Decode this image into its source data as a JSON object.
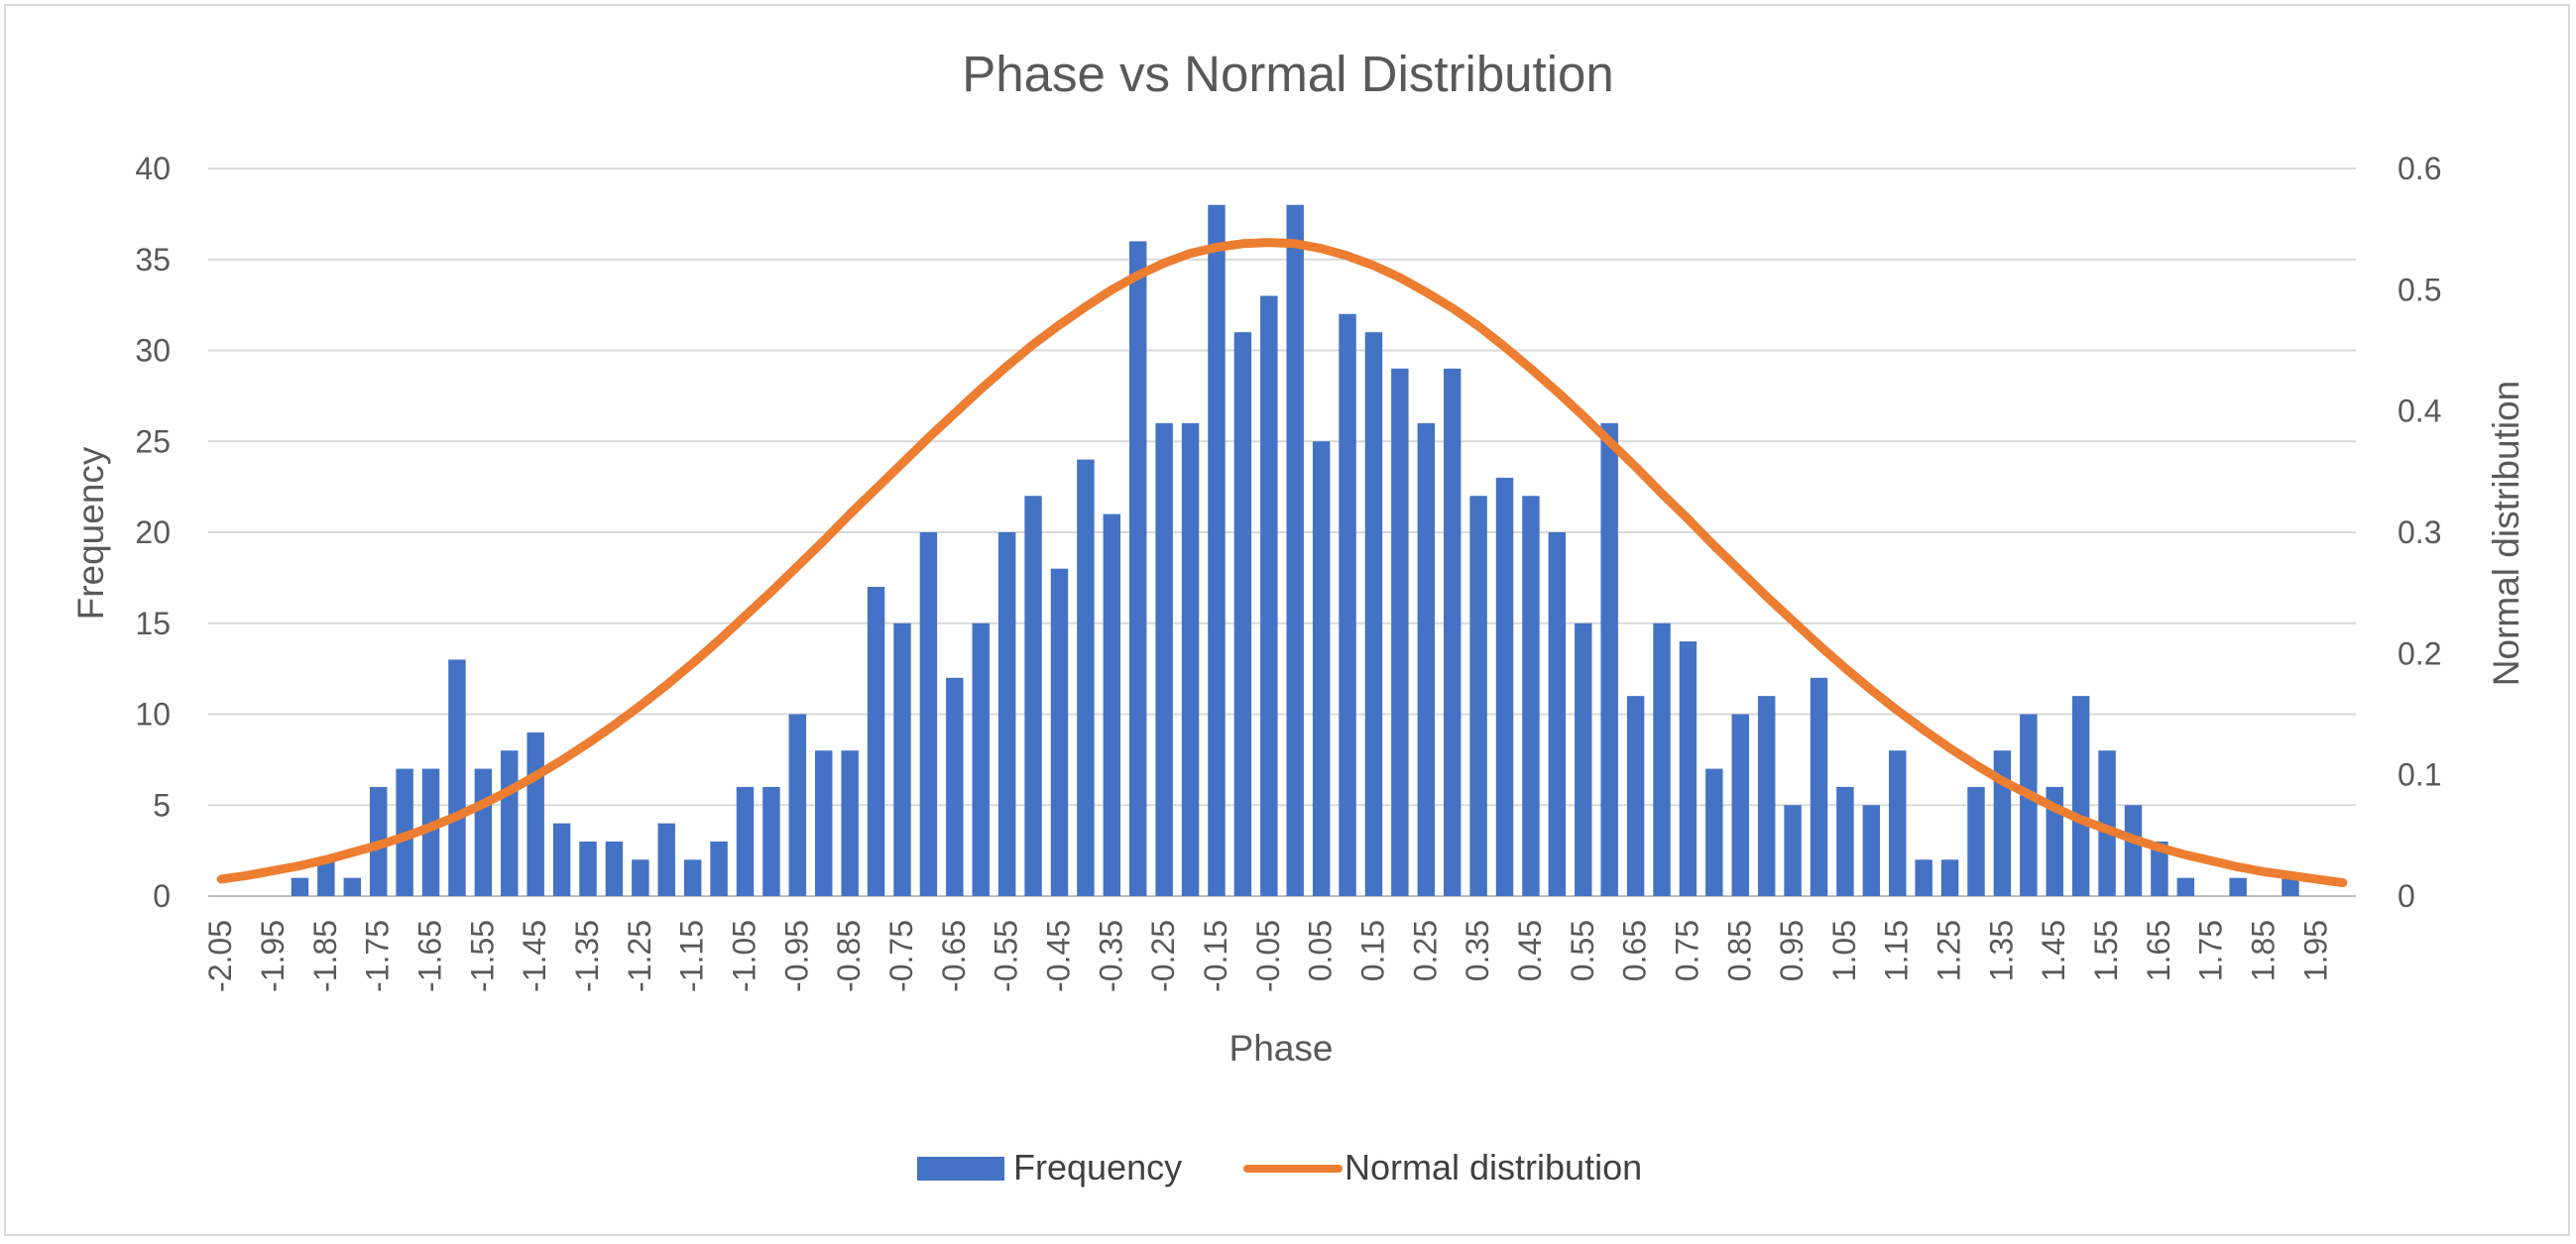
{
  "chart_data": {
    "type": "bar",
    "title": "Phase vs Normal Distribution",
    "xlabel": "Phase",
    "ylabel": "Frequency",
    "y2label": "Normal distribution",
    "ylim": [
      0,
      40
    ],
    "y2lim": [
      0,
      0.6
    ],
    "yticks": [
      "0",
      "5",
      "10",
      "15",
      "20",
      "25",
      "30",
      "35",
      "40"
    ],
    "y2ticks": [
      "0",
      "0.1",
      "0.2",
      "0.3",
      "0.4",
      "0.5",
      "0.6"
    ],
    "grid": true,
    "legend_position": "bottom",
    "categories": [
      "-2.05",
      "-2",
      "-1.95",
      "-1.9",
      "-1.85",
      "-1.8",
      "-1.75",
      "-1.7",
      "-1.65",
      "-1.6",
      "-1.55",
      "-1.5",
      "-1.45",
      "-1.4",
      "-1.35",
      "-1.3",
      "-1.25",
      "-1.2",
      "-1.15",
      "-1.1",
      "-1.05",
      "-1",
      "-0.95",
      "-0.9",
      "-0.85",
      "-0.8",
      "-0.75",
      "-0.7",
      "-0.65",
      "-0.6",
      "-0.55",
      "-0.5",
      "-0.45",
      "-0.4",
      "-0.35",
      "-0.3",
      "-0.25",
      "-0.2",
      "-0.15",
      "-0.1",
      "-0.05",
      "0",
      "0.05",
      "0.1",
      "0.15",
      "0.2",
      "0.25",
      "0.3",
      "0.35",
      "0.4",
      "0.45",
      "0.5",
      "0.55",
      "0.6",
      "0.65",
      "0.7",
      "0.75",
      "0.8",
      "0.85",
      "0.9",
      "0.95",
      "1",
      "1.05",
      "1.1",
      "1.15",
      "1.2",
      "1.25",
      "1.3",
      "1.35",
      "1.4",
      "1.45",
      "1.5",
      "1.55",
      "1.6",
      "1.65",
      "1.7",
      "1.75",
      "1.8",
      "1.85",
      "1.9",
      "1.95",
      "2"
    ],
    "xtick_labels": [
      "-2.05",
      "-1.95",
      "-1.85",
      "-1.75",
      "-1.65",
      "-1.55",
      "-1.45",
      "-1.35",
      "-1.25",
      "-1.15",
      "-1.05",
      "-0.95",
      "-0.85",
      "-0.75",
      "-0.65",
      "-0.55",
      "-0.45",
      "-0.35",
      "-0.25",
      "-0.15",
      "-0.05",
      "0.05",
      "0.15",
      "0.25",
      "0.35",
      "0.45",
      "0.55",
      "0.65",
      "0.75",
      "0.85",
      "0.95",
      "1.05",
      "1.15",
      "1.25",
      "1.35",
      "1.45",
      "1.55",
      "1.65",
      "1.75",
      "1.85",
      "1.95"
    ],
    "series": [
      {
        "name": "Frequency",
        "type": "bar",
        "axis": "left",
        "color": "#4472c4",
        "values": [
          0,
          0,
          0,
          1,
          2,
          1,
          6,
          7,
          7,
          13,
          7,
          8,
          9,
          4,
          3,
          3,
          2,
          4,
          2,
          3,
          6,
          6,
          10,
          8,
          8,
          17,
          15,
          20,
          12,
          15,
          20,
          22,
          18,
          24,
          21,
          36,
          26,
          26,
          38,
          31,
          33,
          38,
          25,
          32,
          31,
          29,
          26,
          29,
          22,
          23,
          22,
          20,
          15,
          26,
          11,
          15,
          14,
          7,
          10,
          11,
          5,
          12,
          6,
          5,
          8,
          2,
          2,
          6,
          8,
          10,
          6,
          11,
          8,
          5,
          3,
          1,
          0,
          1,
          0,
          1,
          0,
          0
        ]
      },
      {
        "name": "Normal distribution",
        "type": "line",
        "axis": "right",
        "color": "#ed7d31",
        "values": [
          0.014,
          0.017,
          0.021,
          0.025,
          0.03,
          0.036,
          0.042,
          0.049,
          0.057,
          0.066,
          0.076,
          0.087,
          0.099,
          0.112,
          0.126,
          0.141,
          0.157,
          0.174,
          0.192,
          0.211,
          0.231,
          0.251,
          0.272,
          0.293,
          0.315,
          0.336,
          0.357,
          0.378,
          0.398,
          0.418,
          0.437,
          0.455,
          0.471,
          0.486,
          0.5,
          0.512,
          0.522,
          0.53,
          0.535,
          0.538,
          0.539,
          0.538,
          0.534,
          0.528,
          0.52,
          0.51,
          0.498,
          0.485,
          0.47,
          0.453,
          0.435,
          0.416,
          0.396,
          0.375,
          0.354,
          0.332,
          0.311,
          0.289,
          0.268,
          0.247,
          0.227,
          0.207,
          0.188,
          0.17,
          0.153,
          0.137,
          0.122,
          0.108,
          0.095,
          0.084,
          0.073,
          0.063,
          0.055,
          0.047,
          0.04,
          0.034,
          0.029,
          0.024,
          0.02,
          0.017,
          0.014,
          0.011
        ]
      }
    ]
  }
}
